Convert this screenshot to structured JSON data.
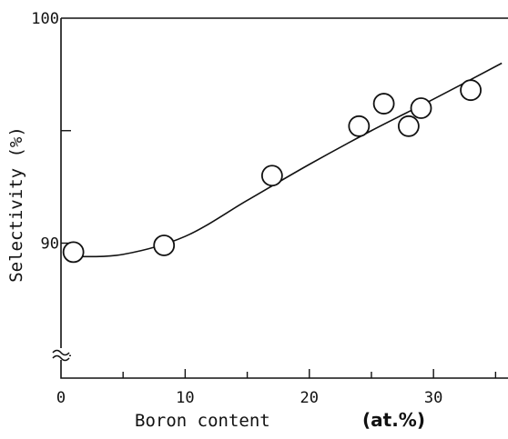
{
  "chart_data": {
    "type": "scatter",
    "xlabel": "Boron content",
    "xlabel_unit": "(at.%)",
    "ylabel": "Selectivity (%)",
    "xlim": [
      0,
      36
    ],
    "ylim": [
      84,
      100
    ],
    "x_ticks": [
      0,
      10,
      20,
      30
    ],
    "x_tick_labels": [
      "0",
      "10",
      "20",
      "30"
    ],
    "y_ticks": [
      85,
      90,
      95,
      100
    ],
    "y_tick_labels": [
      "",
      "90",
      "",
      "100"
    ],
    "y_axis_break": true,
    "grid": false,
    "series": [
      {
        "marker": "open-circle",
        "points": [
          {
            "x": 1.0,
            "y": 89.6
          },
          {
            "x": 8.3,
            "y": 89.9
          },
          {
            "x": 17.0,
            "y": 93.0
          },
          {
            "x": 24.0,
            "y": 95.2
          },
          {
            "x": 26.0,
            "y": 96.2
          },
          {
            "x": 28.0,
            "y": 95.2
          },
          {
            "x": 29.0,
            "y": 96.0
          },
          {
            "x": 33.0,
            "y": 96.8
          }
        ]
      },
      {
        "marker": "none",
        "style": "line",
        "points": [
          {
            "x": 1.0,
            "y": 89.4
          },
          {
            "x": 5.0,
            "y": 89.5
          },
          {
            "x": 10.0,
            "y": 90.3
          },
          {
            "x": 15.0,
            "y": 91.9
          },
          {
            "x": 20.0,
            "y": 93.5
          },
          {
            "x": 25.0,
            "y": 95.0
          },
          {
            "x": 30.0,
            "y": 96.4
          },
          {
            "x": 35.5,
            "y": 98.0
          }
        ]
      }
    ]
  }
}
